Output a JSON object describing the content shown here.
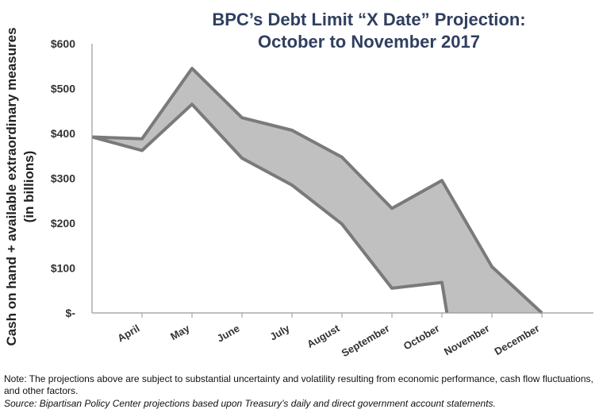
{
  "chart_data": {
    "type": "area",
    "title": [
      "BPC’s Debt Limit “X Date” Projection:",
      "October to November 2017"
    ],
    "ylabel": [
      "Cash on hand + available extraordinary measures",
      "(in billions)"
    ],
    "xlabel": "",
    "ylim": [
      0,
      600
    ],
    "y_ticks": [
      0,
      100,
      200,
      300,
      400,
      500,
      600
    ],
    "y_tick_labels": [
      "$-",
      "$100",
      "$200",
      "$300",
      "$400",
      "$500",
      "$600"
    ],
    "categories": [
      "April",
      "May",
      "June",
      "July",
      "August",
      "September",
      "October",
      "November",
      "December"
    ],
    "x_tick_positions": [
      1,
      2,
      3,
      4,
      5,
      6,
      7,
      8,
      9
    ],
    "x_range": [
      0,
      10
    ],
    "colors": {
      "fill": "#c0c0c0",
      "stroke": "#7a7a7a",
      "axis": "#999999",
      "title": "#2f3f5f"
    },
    "series": [
      {
        "x": [
          0,
          1,
          2,
          3,
          4,
          5,
          6,
          7,
          8,
          9
        ],
        "values": [
          392,
          388,
          545,
          435,
          407,
          347,
          233,
          295,
          103,
          0
        ]
      },
      {
        "x": [
          0,
          1,
          2,
          3,
          4,
          5,
          6,
          7,
          7.1
        ],
        "values": [
          392,
          362,
          465,
          345,
          285,
          198,
          55,
          68,
          0
        ]
      }
    ]
  },
  "note": "Note: The projections above are subject to substantial uncertainty and volatility resulting from economic performance, cash flow fluctuations, and other factors.",
  "source": "Source: Bipartisan Policy Center projections based upon Treasury’s daily and direct government account statements."
}
